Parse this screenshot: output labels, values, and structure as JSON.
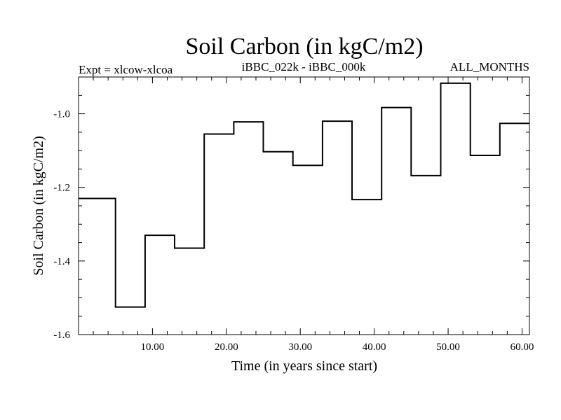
{
  "chart_data": {
    "type": "line",
    "step": true,
    "title": "Soil Carbon (in kgC/m2)",
    "subtitle_left": "Expt = xlcow-xlcoa",
    "subtitle_center": "iBBC_022k - iBBC_000k",
    "subtitle_right": "ALL_MONTHS",
    "xlabel": "Time (in years since start)",
    "ylabel": "Soil Carbon (in kgC/m2)",
    "xlim": [
      0,
      61
    ],
    "ylim": [
      -1.6,
      -0.9
    ],
    "xticks": [
      10,
      20,
      30,
      40,
      50,
      60
    ],
    "xtick_labels": [
      "10.00",
      "20.00",
      "30.00",
      "40.00",
      "50.00",
      "60.00"
    ],
    "yticks": [
      -1.6,
      -1.4,
      -1.2,
      -1.0
    ],
    "ytick_labels": [
      "-1.6",
      "-1.4",
      "-1.2",
      "-1.0"
    ],
    "series": [
      {
        "segments": [
          {
            "x_start": 0,
            "x_end": 5,
            "y": -1.23
          },
          {
            "x_start": 5,
            "x_end": 9,
            "y": -1.525
          },
          {
            "x_start": 9,
            "x_end": 13,
            "y": -1.33
          },
          {
            "x_start": 13,
            "x_end": 17,
            "y": -1.365
          },
          {
            "x_start": 17,
            "x_end": 21,
            "y": -1.055
          },
          {
            "x_start": 21,
            "x_end": 25,
            "y": -1.022
          },
          {
            "x_start": 25,
            "x_end": 29,
            "y": -1.103
          },
          {
            "x_start": 29,
            "x_end": 33,
            "y": -1.14
          },
          {
            "x_start": 33,
            "x_end": 37,
            "y": -1.02
          },
          {
            "x_start": 37,
            "x_end": 41,
            "y": -1.233
          },
          {
            "x_start": 41,
            "x_end": 45,
            "y": -0.983
          },
          {
            "x_start": 45,
            "x_end": 49,
            "y": -1.168
          },
          {
            "x_start": 49,
            "x_end": 53,
            "y": -0.917
          },
          {
            "x_start": 53,
            "x_end": 57,
            "y": -1.113
          },
          {
            "x_start": 57,
            "x_end": 61,
            "y": -1.026
          }
        ]
      }
    ],
    "grid": false
  }
}
